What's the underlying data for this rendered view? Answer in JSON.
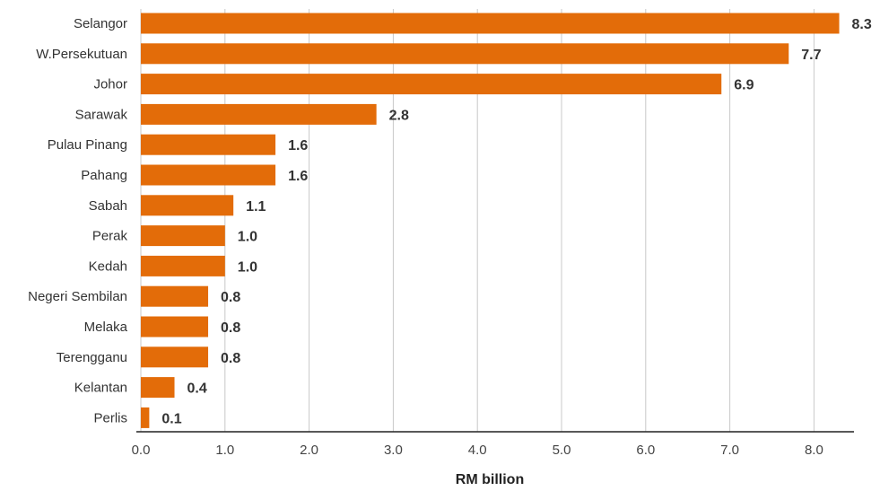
{
  "chart_data": {
    "type": "bar",
    "orientation": "horizontal",
    "categories": [
      "Selangor",
      "W.Persekutuan",
      "Johor",
      "Sarawak",
      "Pulau Pinang",
      "Pahang",
      "Sabah",
      "Perak",
      "Kedah",
      "Negeri Sembilan",
      "Melaka",
      "Terengganu",
      "Kelantan",
      "Perlis"
    ],
    "values": [
      8.3,
      7.7,
      6.9,
      2.8,
      1.6,
      1.6,
      1.1,
      1.0,
      1.0,
      0.8,
      0.8,
      0.8,
      0.4,
      0.1
    ],
    "value_labels": [
      "8.3",
      "7.7",
      "6.9",
      "2.8",
      "1.6",
      "1.6",
      "1.1",
      "1.0",
      "1.0",
      "0.8",
      "0.8",
      "0.8",
      "0.4",
      "0.1"
    ],
    "title": "",
    "xlabel": "RM billion",
    "ylabel": "",
    "xlim": [
      0,
      8.5
    ],
    "xticks": [
      0,
      1,
      2,
      3,
      4,
      5,
      6,
      7,
      8
    ],
    "xtick_labels": [
      "0.0",
      "1.0",
      "2.0",
      "3.0",
      "4.0",
      "5.0",
      "6.0",
      "7.0",
      "8.0"
    ],
    "grid": "vertical",
    "legend": "none",
    "bar_color": "#e36c09"
  }
}
